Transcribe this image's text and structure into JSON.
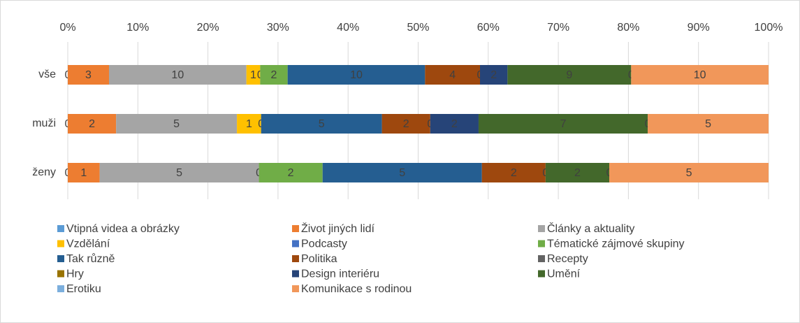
{
  "chart_data": {
    "type": "stacked_bar_100_horizontal",
    "categories": [
      "vše",
      "muži",
      "ženy"
    ],
    "xlim": [
      0,
      100
    ],
    "xticks": [
      {
        "value": 0,
        "label": "0%"
      },
      {
        "value": 10,
        "label": "10%"
      },
      {
        "value": 20,
        "label": "20%"
      },
      {
        "value": 30,
        "label": "30%"
      },
      {
        "value": 40,
        "label": "40%"
      },
      {
        "value": 50,
        "label": "50%"
      },
      {
        "value": 60,
        "label": "60%"
      },
      {
        "value": 70,
        "label": "70%"
      },
      {
        "value": 80,
        "label": "80%"
      },
      {
        "value": 90,
        "label": "90%"
      },
      {
        "value": 100,
        "label": "100%"
      }
    ],
    "grid": true,
    "legend": "bottom",
    "series": [
      {
        "name": "Vtipná videa a obrázky",
        "color": "#5b9bd5",
        "values": [
          0,
          0,
          0
        ]
      },
      {
        "name": "Život jiných lidí",
        "color": "#ed7d31",
        "values": [
          3,
          2,
          1
        ]
      },
      {
        "name": "Články a aktuality",
        "color": "#a5a5a5",
        "values": [
          10,
          5,
          5
        ]
      },
      {
        "name": "Vzdělání",
        "color": "#ffc000",
        "values": [
          1,
          1,
          null
        ]
      },
      {
        "name": "Podcasty",
        "color": "#4472c4",
        "values": [
          0,
          0,
          0
        ]
      },
      {
        "name": "Tématické zájmové skupiny",
        "color": "#70ad47",
        "values": [
          2,
          null,
          2
        ]
      },
      {
        "name": "Tak různě",
        "color": "#255e91",
        "values": [
          10,
          5,
          5
        ]
      },
      {
        "name": "Politika",
        "color": "#9e480e",
        "values": [
          4,
          2,
          2
        ]
      },
      {
        "name": "Recepty",
        "color": "#636363",
        "values": [
          0,
          0,
          0
        ]
      },
      {
        "name": "Hry",
        "color": "#997300",
        "values": [
          null,
          null,
          null
        ]
      },
      {
        "name": "Design interiéru",
        "color": "#264478",
        "values": [
          2,
          2,
          null
        ]
      },
      {
        "name": "Umění",
        "color": "#43682b",
        "values": [
          9,
          7,
          2
        ]
      },
      {
        "name": "Erotiku",
        "color": "#7cafdd",
        "values": [
          0,
          0,
          0
        ]
      },
      {
        "name": "Komunikace s rodinou",
        "color": "#f1975a",
        "values": [
          10,
          5,
          5
        ]
      }
    ]
  }
}
